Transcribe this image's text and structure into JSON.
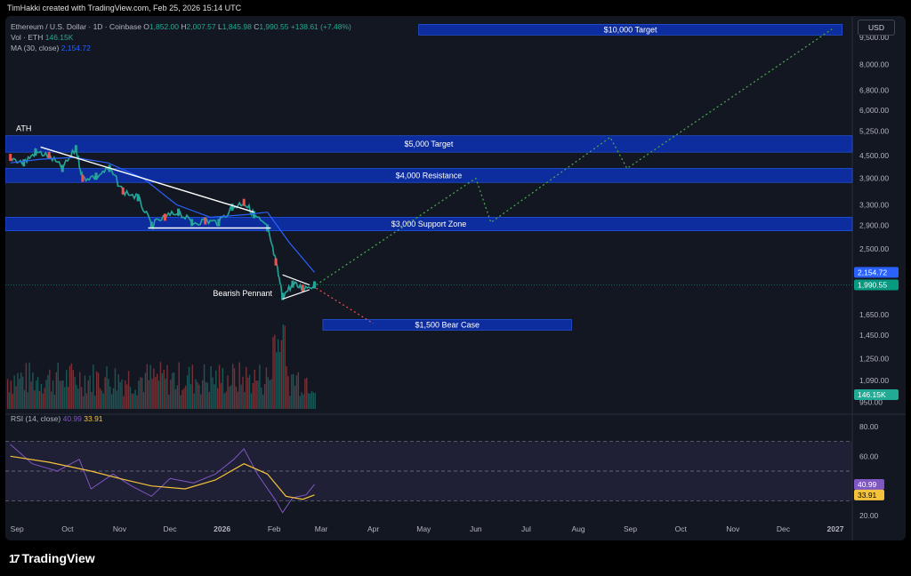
{
  "topbar": {
    "text": "TimHakki created with TradingView.com, Feb 25, 2026 15:14 UTC"
  },
  "legend": {
    "symbol": "Ethereum / U.S. Dollar · 1D · Coinbase",
    "o_label": "O",
    "o": "1,852.00",
    "h_label": "H",
    "h": "2,007.57",
    "l_label": "L",
    "l": "1,845.98",
    "c_label": "C",
    "c": "1,990.55",
    "change": "+138.61 (+7.48%)",
    "vol_label": "Vol · ETH",
    "vol": "146.15K",
    "ma_label": "MA (30, close)",
    "ma": "2,154.72",
    "rsi_label": "RSI (14, close)",
    "rsi": "40.99",
    "rsi_ma": "33.91"
  },
  "currency_button": "USD",
  "footer": {
    "logo_text": "TradingView",
    "logo_mark": "17"
  },
  "chart_data": {
    "type": "line",
    "title": "",
    "x_ticks": [
      "Sep",
      "Oct",
      "Nov",
      "Dec",
      "2026",
      "Feb",
      "Mar",
      "Apr",
      "May",
      "Jun",
      "Jul",
      "Aug",
      "Sep",
      "Oct",
      "Nov",
      "Dec",
      "2027"
    ],
    "y_ticks": [
      "9,500.00",
      "8,000.00",
      "6,800.00",
      "6,000.00",
      "5,250.00",
      "4,500.00",
      "3,900.00",
      "3,300.00",
      "2,900.00",
      "2,500.00",
      "1,650.00",
      "1,450.00",
      "1,250.00",
      "1,090.00",
      "950.00"
    ],
    "y_scale": "log",
    "price_labels": [
      {
        "text": "2,154.72",
        "color": "#2962ff"
      },
      {
        "text": "1,990.55",
        "color": "#089981"
      },
      {
        "text": "146.15K",
        "color": "#22ab94"
      }
    ],
    "zones": [
      {
        "label": "$10,000 Target",
        "price_low": 9800,
        "price_high": 10300
      },
      {
        "label": "$5,000 Target",
        "price_low": 4600,
        "price_high": 5100
      },
      {
        "label": "$4,000 Resistance",
        "price_low": 3800,
        "price_high": 4150
      },
      {
        "label": "$3,000 Support Zone",
        "price_low": 2800,
        "price_high": 3050
      },
      {
        "label": "$1,500 Bear Case",
        "price_low": 1510,
        "price_high": 1600
      }
    ],
    "annotations": [
      {
        "text": "ATH"
      },
      {
        "text": "Bearish Pennant"
      }
    ],
    "series": [
      {
        "name": "Ethereum / U.S. Dollar",
        "color": "#26a69a",
        "values": [
          [
            "Aug 28",
            4450
          ],
          [
            "Sep 5",
            4300
          ],
          [
            "Sep 12",
            4600
          ],
          [
            "Sep 20",
            4500
          ],
          [
            "Sep 28",
            4150
          ],
          [
            "Oct 6",
            4700
          ],
          [
            "Oct 10",
            3900
          ],
          [
            "Oct 18",
            3950
          ],
          [
            "Oct 26",
            4150
          ],
          [
            "Nov 3",
            3600
          ],
          [
            "Nov 12",
            3450
          ],
          [
            "Nov 20",
            2900
          ],
          [
            "Nov 28",
            3050
          ],
          [
            "Dec 6",
            3150
          ],
          [
            "Dec 14",
            2950
          ],
          [
            "Dec 22",
            2980
          ],
          [
            "Dec 30",
            2950
          ],
          [
            "Jan 7",
            3250
          ],
          [
            "Jan 14",
            3350
          ],
          [
            "Jan 20",
            3100
          ],
          [
            "Jan 28",
            2850
          ],
          [
            "Feb 2",
            2300
          ],
          [
            "Feb 6",
            1850
          ],
          [
            "Feb 12",
            2000
          ],
          [
            "Feb 18",
            1950
          ],
          [
            "Feb 25",
            1990.55
          ]
        ]
      },
      {
        "name": "MA (30, close)",
        "color": "#2962ff",
        "values": [
          [
            "Aug 28",
            4300
          ],
          [
            "Sep 15",
            4400
          ],
          [
            "Oct 5",
            4450
          ],
          [
            "Oct 25",
            4300
          ],
          [
            "Nov 15",
            3900
          ],
          [
            "Dec 5",
            3300
          ],
          [
            "Dec 25",
            3050
          ],
          [
            "Jan 15",
            3100
          ],
          [
            "Jan 28",
            3150
          ],
          [
            "Feb 10",
            2600
          ],
          [
            "Feb 25",
            2154.72
          ]
        ]
      },
      {
        "name": "RSI (14, close)",
        "color": "#7e57c2",
        "axis": [
          20,
          80
        ],
        "levels": [
          70,
          50,
          30
        ],
        "ticks": [
          "80.00",
          "60.00",
          "40.00",
          "20.00"
        ],
        "values": [
          [
            "Aug 28",
            68
          ],
          [
            "Sep 10",
            55
          ],
          [
            "Sep 25",
            50
          ],
          [
            "Oct 8",
            58
          ],
          [
            "Oct 15",
            38
          ],
          [
            "Oct 28",
            48
          ],
          [
            "Nov 8",
            40
          ],
          [
            "Nov 20",
            33
          ],
          [
            "Dec 1",
            45
          ],
          [
            "Dec 15",
            42
          ],
          [
            "Dec 28",
            48
          ],
          [
            "Jan 8",
            58
          ],
          [
            "Jan 14",
            65
          ],
          [
            "Jan 22",
            48
          ],
          [
            "Feb 2",
            30
          ],
          [
            "Feb 6",
            22
          ],
          [
            "Feb 12",
            32
          ],
          [
            "Feb 20",
            34
          ],
          [
            "Feb 25",
            40.99
          ]
        ]
      },
      {
        "name": "RSI MA",
        "color": "#f5c33b",
        "values": [
          [
            "Aug 28",
            60
          ],
          [
            "Sep 20",
            56
          ],
          [
            "Oct 15",
            50
          ],
          [
            "Nov 1",
            45
          ],
          [
            "Nov 20",
            40
          ],
          [
            "Dec 10",
            38
          ],
          [
            "Dec 28",
            44
          ],
          [
            "Jan 14",
            55
          ],
          [
            "Jan 28",
            48
          ],
          [
            "Feb 8",
            33
          ],
          [
            "Feb 18",
            31
          ],
          [
            "Feb 25",
            33.91
          ]
        ]
      }
    ]
  }
}
